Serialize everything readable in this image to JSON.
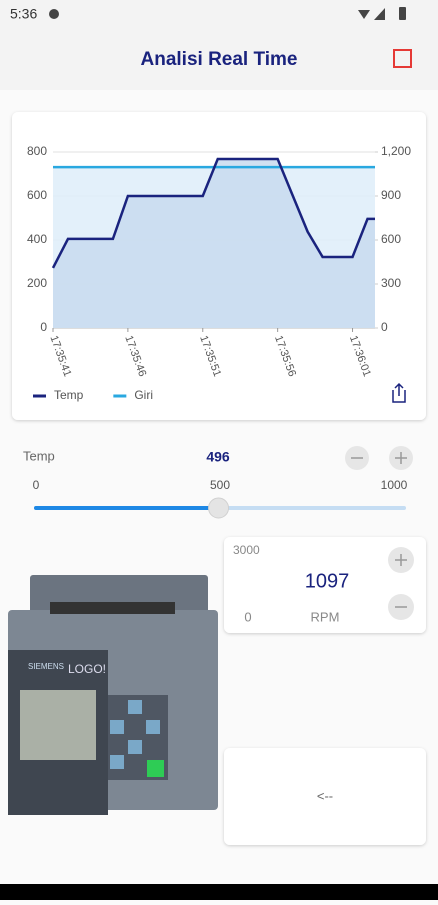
{
  "status": {
    "time": "5:36"
  },
  "app_bar": {
    "title": "Analisi Real Time"
  },
  "chart_data": {
    "type": "line",
    "categories": [
      "17:35:41",
      null,
      null,
      null,
      null,
      "17:35:46",
      null,
      null,
      null,
      null,
      "17:35:51",
      null,
      null,
      null,
      null,
      "17:35:56",
      null,
      null,
      null,
      null,
      "17:36:01",
      null
    ],
    "series": [
      {
        "name": "Temp",
        "color": "#1a237e",
        "values": [
          273,
          405,
          405,
          405,
          405,
          600,
          600,
          600,
          600,
          600,
          600,
          768,
          768,
          768,
          768,
          768,
          603,
          438,
          323,
          323,
          323,
          496
        ]
      },
      {
        "name": "Giri",
        "color": "#29a8e0",
        "axis": "y2",
        "values": [
          1097,
          1097,
          1097,
          1097,
          1097,
          1097,
          1097,
          1097,
          1097,
          1097,
          1097,
          1097,
          1097,
          1097,
          1097,
          1097,
          1097,
          1097,
          1097,
          1097,
          1097,
          1097
        ]
      }
    ],
    "ylim": [
      0,
      800
    ],
    "yticks": [
      0,
      200,
      400,
      600,
      800
    ],
    "y2lim": [
      0,
      1200
    ],
    "y2ticks": [
      0,
      300,
      600,
      900,
      {
        "value": 1200,
        "label": "1,200"
      }
    ],
    "grid": true,
    "legend": "bottom-left"
  },
  "slider": {
    "label": "Temp",
    "value": 496,
    "min": 0,
    "mid": 500,
    "max": 1000
  },
  "rpm": {
    "max": 3000,
    "value": 1097,
    "min": 0,
    "unit": "RPM"
  },
  "button": {
    "label": "<--"
  },
  "device": {
    "brand": "SIEMENS",
    "model": "LOGO!"
  }
}
